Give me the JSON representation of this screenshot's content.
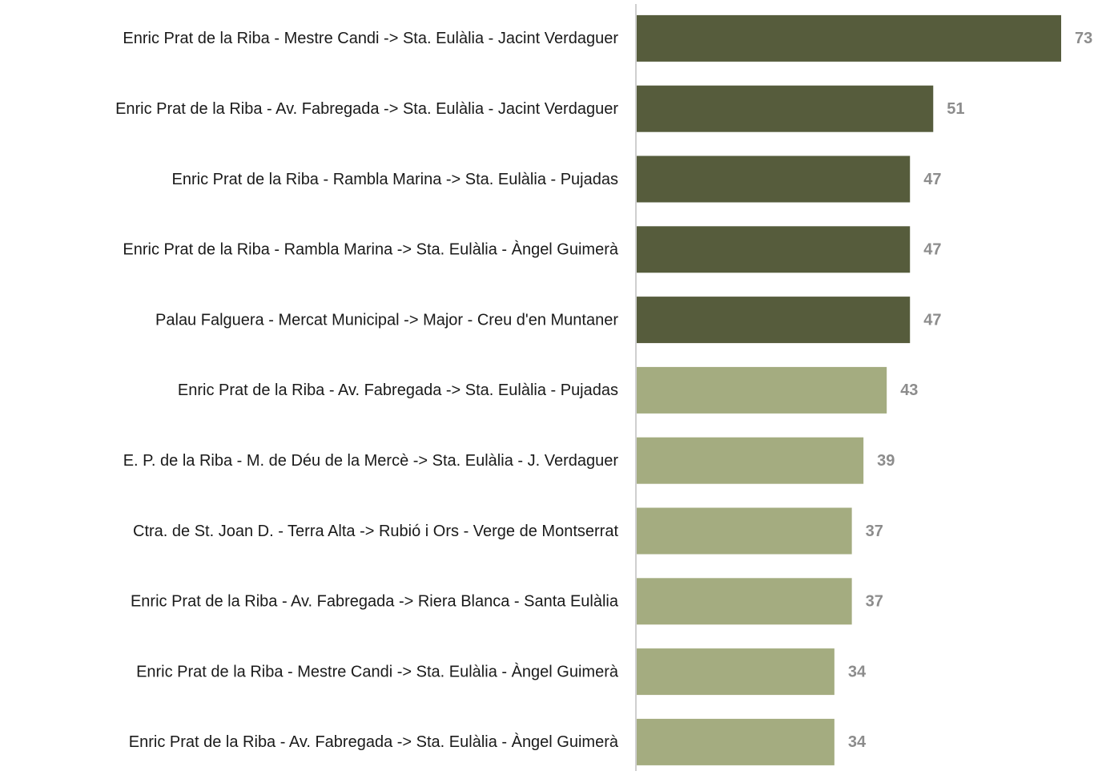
{
  "chart_data": {
    "type": "barh",
    "categories": [
      "Enric Prat de la Riba - Mestre Candi -> Sta. Eulàlia - Jacint Verdaguer",
      "Enric Prat de la Riba - Av. Fabregada -> Sta. Eulàlia - Jacint Verdaguer",
      "Enric Prat de la Riba - Rambla Marina -> Sta. Eulàlia - Pujadas",
      "Enric Prat de la Riba - Rambla Marina -> Sta. Eulàlia - Àngel Guimerà",
      "Palau Falguera - Mercat Municipal -> Major - Creu d'en Muntaner",
      "Enric Prat de la Riba - Av. Fabregada -> Sta. Eulàlia - Pujadas",
      "E. P. de la Riba - M. de Déu de la Mercè -> Sta. Eulàlia - J. Verdaguer",
      "Ctra. de St. Joan D. - Terra Alta -> Rubió i Ors - Verge de Montserrat",
      "Enric Prat de la Riba - Av. Fabregada -> Riera Blanca - Santa Eulàlia",
      "Enric Prat de la Riba - Mestre Candi -> Sta. Eulàlia - Àngel Guimerà",
      "Enric Prat de la Riba - Av. Fabregada -> Sta. Eulàlia - Àngel Guimerà"
    ],
    "values": [
      73,
      51,
      47,
      47,
      47,
      43,
      39,
      37,
      37,
      34,
      34
    ],
    "colors": [
      "#565c3c",
      "#565c3c",
      "#565c3c",
      "#565c3c",
      "#565c3c",
      "#a4ac80",
      "#a4ac80",
      "#a4ac80",
      "#a4ac80",
      "#a4ac80",
      "#a4ac80"
    ]
  }
}
